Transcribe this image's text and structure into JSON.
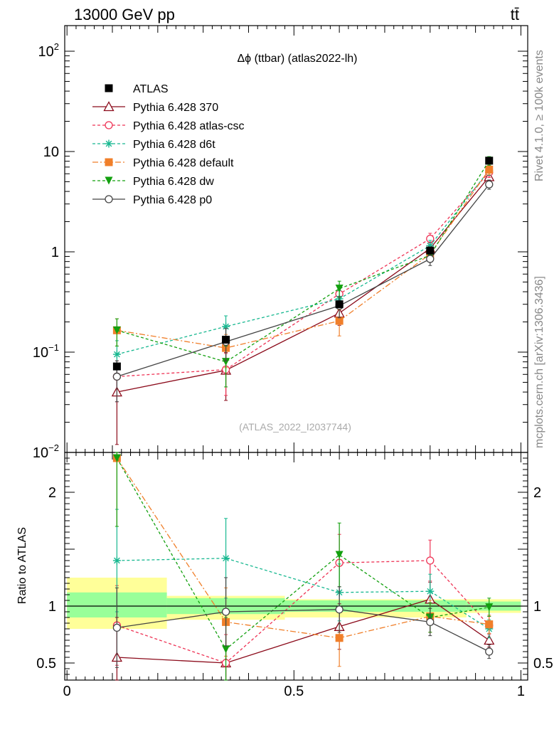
{
  "header": {
    "energy_label": "13000 GeV pp",
    "process_label": "tt̄"
  },
  "side_labels": {
    "rivet": "Rivet 4.1.0, ≥ 100k events",
    "mcplots": "mcplots.cern.ch [arXiv:1306.3436]"
  },
  "chart_data": [
    {
      "type": "line",
      "title": "Δϕ (ttbar) (atlas2022-lh)",
      "watermark": "(ATLAS_2022_I2037744)",
      "yscale": "log",
      "ylim": [
        0.01,
        180
      ],
      "xlim": [
        -0.005,
        1.015
      ],
      "y_tick_labels": [
        {
          "value": 100,
          "base": "10",
          "exp": "2"
        },
        {
          "value": 10,
          "base": "10",
          "exp": ""
        },
        {
          "value": 1,
          "base": "1",
          "exp": ""
        },
        {
          "value": 0.1,
          "base": "10",
          "exp": "−1"
        },
        {
          "value": 0.01,
          "base": "10",
          "exp": "−2"
        }
      ],
      "x": [
        0.11,
        0.35,
        0.6,
        0.8,
        0.93
      ],
      "data": {
        "name": "ATLAS",
        "values": [
          0.072,
          0.133,
          0.3,
          1.03,
          8.1
        ],
        "color": "#000000"
      },
      "series": [
        {
          "name": "Pythia 6.428 370",
          "color": "#8b0a1a",
          "dash": "",
          "marker": "triangle-open",
          "values": [
            0.04,
            0.066,
            0.245,
            1.08,
            5.6
          ],
          "err": [
            0.028,
            0.033,
            0.06,
            0.15,
            0.7
          ]
        },
        {
          "name": "Pythia 6.428 atlas-csc",
          "color": "#ee3355",
          "dash": "4,3",
          "marker": "circle-open",
          "values": [
            0.057,
            0.067,
            0.38,
            1.35,
            6.2
          ],
          "err": [
            0.025,
            0.03,
            0.08,
            0.18,
            0.7
          ]
        },
        {
          "name": "Pythia 6.428 d6t",
          "color": "#17b890",
          "dash": "4,3",
          "marker": "star",
          "values": [
            0.095,
            0.18,
            0.34,
            1.15,
            6.5
          ],
          "err": [
            0.035,
            0.05,
            0.07,
            0.15,
            0.7
          ]
        },
        {
          "name": "Pythia 6.428 default",
          "color": "#f07f2a",
          "dash": "8,3,2,3",
          "marker": "square",
          "values": [
            0.165,
            0.11,
            0.205,
            0.95,
            6.6
          ],
          "err": [
            0.05,
            0.04,
            0.06,
            0.13,
            0.7
          ]
        },
        {
          "name": "Pythia 6.428 dw",
          "color": "#13a00f",
          "dash": "4,3",
          "marker": "triangle-down",
          "values": [
            0.165,
            0.08,
            0.43,
            0.92,
            8.1
          ],
          "err": [
            0.05,
            0.035,
            0.08,
            0.13,
            0.8
          ]
        },
        {
          "name": "Pythia 6.428 p0",
          "color": "#444444",
          "dash": "",
          "marker": "circle-open",
          "values": [
            0.057,
            0.127,
            0.29,
            0.85,
            4.7
          ],
          "err": [
            0.025,
            0.045,
            0.07,
            0.12,
            0.5
          ]
        }
      ]
    },
    {
      "type": "line",
      "ylabel": "Ratio to ATLAS",
      "xlim": [
        -0.005,
        1.015
      ],
      "ylim": [
        0.35,
        2.35
      ],
      "y_tick_labels": [
        {
          "value": 2,
          "label": "2"
        },
        {
          "value": 1,
          "label": "1"
        },
        {
          "value": 0.5,
          "label": "0.5"
        }
      ],
      "x_tick_labels": [
        {
          "value": 0,
          "label": "0"
        },
        {
          "value": 0.5,
          "label": "0.5"
        },
        {
          "value": 1,
          "label": "1"
        }
      ],
      "bands": {
        "bins": [
          [
            0,
            0.22
          ],
          [
            0.22,
            0.48
          ],
          [
            0.48,
            0.88
          ],
          [
            0.88,
            1.0
          ]
        ],
        "stat": [
          [
            0.9,
            1.12
          ],
          [
            0.93,
            1.07
          ],
          [
            0.95,
            1.05
          ],
          [
            0.96,
            1.04
          ]
        ],
        "total": [
          [
            0.8,
            1.25
          ],
          [
            0.88,
            1.09
          ],
          [
            0.9,
            1.06
          ],
          [
            0.94,
            1.06
          ]
        ],
        "stat_color": "#99ff99",
        "total_color": "#ffff99"
      },
      "series": [
        {
          "name": "Pythia 6.428 370",
          "values": [
            0.55,
            0.5,
            0.82,
            1.06,
            0.7
          ],
          "err": [
            0.35,
            0.25,
            0.2,
            0.15,
            0.06
          ]
        },
        {
          "name": "Pythia 6.428 atlas-csc",
          "values": [
            0.83,
            0.5,
            1.38,
            1.4,
            0.83
          ],
          "err": [
            0.35,
            0.25,
            0.25,
            0.18,
            0.08
          ]
        },
        {
          "name": "Pythia 6.428 d6t",
          "values": [
            1.4,
            1.42,
            1.12,
            1.13,
            0.8
          ],
          "err": [
            0.45,
            0.35,
            0.25,
            0.15,
            0.08
          ]
        },
        {
          "name": "Pythia 6.428 default",
          "values": [
            2.3,
            0.86,
            0.72,
            0.91,
            0.84
          ],
          "err": [
            0.6,
            0.3,
            0.25,
            0.14,
            0.08
          ]
        },
        {
          "name": "Pythia 6.428 dw",
          "values": [
            2.3,
            0.62,
            1.45,
            0.9,
            0.99
          ],
          "err": [
            0.6,
            0.28,
            0.28,
            0.13,
            0.08
          ]
        },
        {
          "name": "Pythia 6.428 p0",
          "values": [
            0.81,
            0.95,
            0.97,
            0.86,
            0.6
          ],
          "err": [
            0.35,
            0.3,
            0.2,
            0.12,
            0.06
          ]
        }
      ]
    }
  ]
}
